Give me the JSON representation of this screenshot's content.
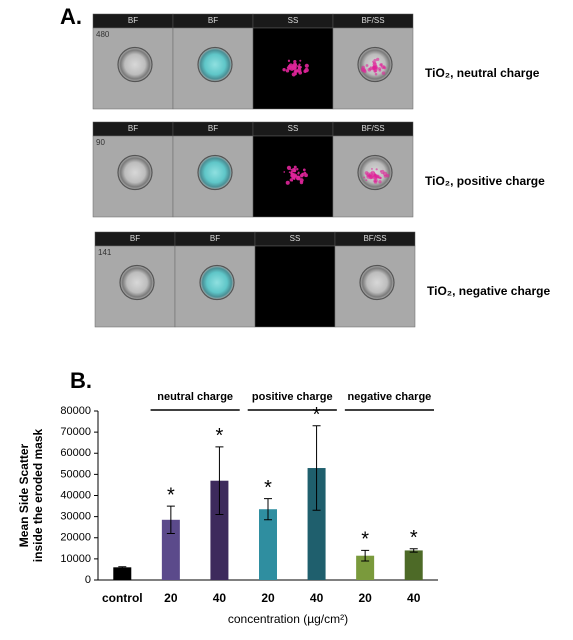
{
  "panel_a": {
    "label": "A.",
    "strips": [
      {
        "headers": [
          "BF",
          "BF",
          "SS",
          "BF/SS"
        ],
        "number": "480",
        "caption": "TiO₂, neutral charge"
      },
      {
        "headers": [
          "BF",
          "BF",
          "SS",
          "BF/SS"
        ],
        "number": "90",
        "caption": "TiO₂, positive charge"
      },
      {
        "headers": [
          "BF",
          "BF",
          "SS",
          "BF/SS"
        ],
        "number": "141",
        "caption": "TiO₂, negative charge"
      }
    ]
  },
  "chart_data": {
    "type": "bar",
    "label": "B.",
    "ylabel": [
      "Mean Side Scatter",
      "inside the eroded mask"
    ],
    "xlabel": "concentration  (µg/cm²)",
    "categories": [
      "control",
      "20",
      "40",
      "20",
      "40",
      "20",
      "40"
    ],
    "values": [
      6000,
      28500,
      47000,
      33500,
      53000,
      11500,
      14000
    ],
    "errors": [
      300,
      6500,
      16000,
      5000,
      20000,
      2500,
      800
    ],
    "colors": [
      "#000000",
      "#5b4a8b",
      "#3d2a5c",
      "#2f8ea0",
      "#1f5f6d",
      "#7a9a3c",
      "#4d6a27"
    ],
    "significance": [
      null,
      "*",
      "*",
      "*",
      "*",
      "*",
      "*"
    ],
    "groups": [
      {
        "label": "neutral charge",
        "from": 1,
        "to": 2
      },
      {
        "label": "positive charge",
        "from": 3,
        "to": 4
      },
      {
        "label": "negative charge",
        "from": 5,
        "to": 6
      }
    ],
    "ylim": [
      0,
      80000
    ],
    "yticks": [
      0,
      10000,
      20000,
      30000,
      40000,
      50000,
      60000,
      70000,
      80000
    ],
    "grid": false
  }
}
